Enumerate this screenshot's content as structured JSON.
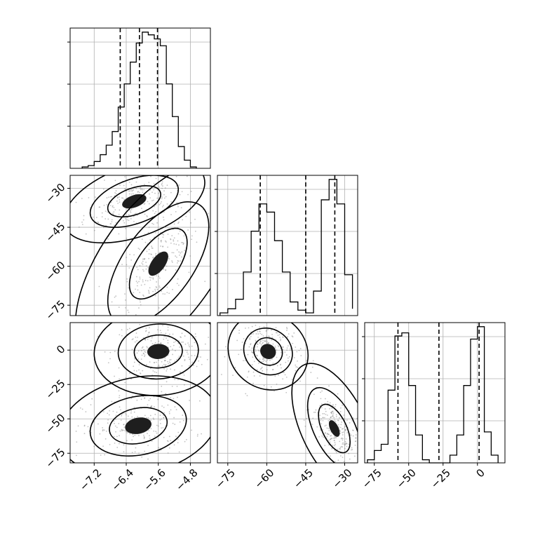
{
  "chart_data": {
    "type": "corner",
    "parameters": [
      {
        "ticks": [
          -7.2,
          -6.4,
          -5.6,
          -4.8
        ],
        "tick_labels": [
          "−7.2",
          "−6.4",
          "−5.6",
          "−4.8"
        ],
        "range": [
          -7.8,
          -4.3
        ],
        "histogram": {
          "bin_edges": [
            -7.5,
            -7.35,
            -7.2,
            -7.05,
            -6.9,
            -6.75,
            -6.6,
            -6.45,
            -6.3,
            -6.15,
            -6.0,
            -5.85,
            -5.7,
            -5.55,
            -5.4,
            -5.25,
            -5.1,
            -4.95,
            -4.8,
            -4.65
          ],
          "counts": [
            0.01,
            0.02,
            0.05,
            0.1,
            0.17,
            0.27,
            0.45,
            0.62,
            0.78,
            0.92,
            1.0,
            0.98,
            0.95,
            0.9,
            0.62,
            0.38,
            0.16,
            0.06,
            0.01
          ],
          "quantiles": [
            -6.55,
            -6.07,
            -5.62
          ]
        }
      },
      {
        "ticks": [
          -75,
          -60,
          -45,
          -30
        ],
        "tick_labels": [
          "−75",
          "−60",
          "−45",
          "−30"
        ],
        "range": [
          -79,
          -25
        ],
        "histogram": {
          "bin_edges": [
            -78,
            -75,
            -72,
            -69,
            -66,
            -63,
            -60,
            -57,
            -54,
            -51,
            -48,
            -45,
            -42,
            -39,
            -36,
            -33,
            -30,
            -27
          ],
          "counts": [
            0.02,
            0.05,
            0.12,
            0.32,
            0.62,
            0.82,
            0.76,
            0.55,
            0.32,
            0.1,
            0.04,
            0.02,
            0.18,
            0.85,
            1.0,
            0.82,
            0.3,
            0.05
          ],
          "quantiles": [
            -62.5,
            -45.0,
            -33.8
          ]
        }
      },
      {
        "ticks": [
          -75,
          -50,
          -25,
          0
        ],
        "tick_labels": [
          "−75",
          "−50",
          "−25",
          "0"
        ],
        "range": [
          -82,
          20
        ],
        "histogram": {
          "bin_edges": [
            -80,
            -75,
            -70,
            -65,
            -60,
            -55,
            -50,
            -45,
            -40,
            -35,
            -30,
            -25,
            -20,
            -15,
            -10,
            -5,
            0,
            5,
            10,
            15
          ],
          "counts": [
            0.02,
            0.08,
            0.12,
            0.47,
            0.82,
            0.84,
            0.5,
            0.18,
            0.02,
            0.0,
            0.0,
            0.0,
            0.05,
            0.18,
            0.5,
            0.8,
            0.88,
            0.2,
            0.05
          ],
          "quantiles": [
            -57.8,
            -28.0,
            1.2
          ]
        }
      }
    ],
    "pair_plots": [
      {
        "x_param": 0,
        "y_param": 1,
        "clusters": [
          {
            "cx": -6.2,
            "cy": -35,
            "sx": 0.55,
            "sy": 5.0,
            "rho": 0.45,
            "levels": [
              [
                1.0,
                3.2,
                0.62
              ],
              [
                0.65,
                2.0,
                0.34
              ],
              [
                0.4,
                1.2,
                0.16
              ]
            ]
          },
          {
            "cx": -5.6,
            "cy": -59,
            "sx": 0.45,
            "sy": 8.5,
            "rho": 0.6,
            "levels": [
              [
                1.0,
                4.6,
                0.8
              ],
              [
                0.65,
                2.8,
                0.45
              ],
              [
                0.4,
                1.6,
                0.25
              ]
            ]
          }
        ]
      },
      {
        "x_param": 0,
        "y_param": 2,
        "clusters": [
          {
            "cx": -5.6,
            "cy": -1,
            "sx": 0.5,
            "sy": 10,
            "rho": 0.05,
            "levels": [
              [
                1.0,
                3.2,
                0.7
              ],
              [
                0.65,
                2.0,
                0.4
              ],
              [
                0.4,
                1.2,
                0.22
              ]
            ]
          },
          {
            "cx": -6.1,
            "cy": -55,
            "sx": 0.6,
            "sy": 11,
            "rho": 0.2,
            "levels": [
              [
                1.0,
                3.3,
                0.72
              ],
              [
                0.65,
                2.0,
                0.38
              ],
              [
                0.4,
                1.2,
                0.2
              ]
            ]
          }
        ]
      },
      {
        "x_param": 1,
        "y_param": 2,
        "clusters": [
          {
            "cx": -59.5,
            "cy": -1,
            "sx": 5.5,
            "sy": 10,
            "rho": -0.1,
            "levels": [
              [
                1.0,
                2.8,
                0.6
              ],
              [
                0.65,
                1.7,
                0.34
              ],
              [
                0.4,
                1.0,
                0.18
              ]
            ]
          },
          {
            "cx": -34,
            "cy": -57,
            "sx": 3.8,
            "sy": 11,
            "rho": -0.55,
            "levels": [
              [
                1.0,
                4.3,
                0.78
              ],
              [
                0.65,
                2.7,
                0.45
              ],
              [
                0.4,
                1.6,
                0.25
              ]
            ]
          }
        ]
      }
    ],
    "contour_colors": [
      "#bdbdbd",
      "#8e8e8e",
      "#5f5f5f",
      "#1e1e1e"
    ],
    "scatter_color": "#777777",
    "grid": true,
    "quantile_style": "dashed"
  }
}
